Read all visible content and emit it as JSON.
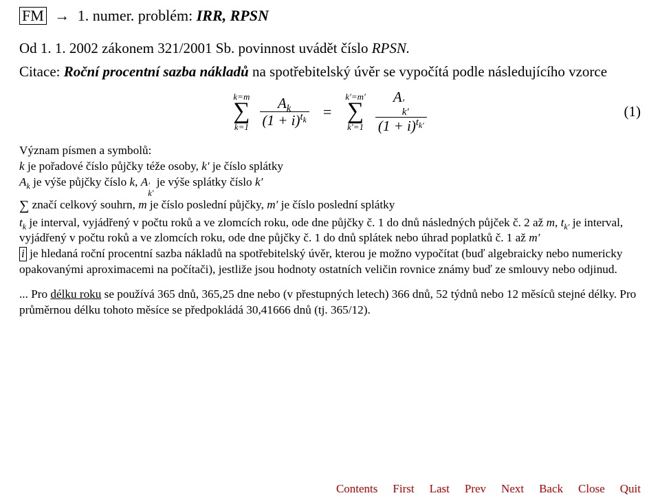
{
  "header": {
    "boxed": "FM",
    "arrow": "→",
    "pre_bold": "1. numer. problém:",
    "bold": "IRR, RPSN"
  },
  "line2": {
    "text_a": "Od 1. 1. 2002 zákonem 321/2001 Sb. povinnost uvádět číslo ",
    "ital": "RPSN."
  },
  "para": {
    "pre": "Citace: ",
    "bold": "Roční procentní sazba nákladů",
    "post": " na spotřebitelský úvěr se vypočítá podle následujícího vzorce"
  },
  "formula": {
    "sum1_top": "k=m",
    "sum1_bot": "k=1",
    "frac1_num": "A",
    "frac1_num_sub": "k",
    "frac1_den_base": "(1 + i)",
    "frac1_den_sup": "t",
    "frac1_den_supsub": "k",
    "eq": "=",
    "sum2_top": "k′=m′",
    "sum2_bot": "k′=1",
    "frac2_num": "A",
    "frac2_num_sup": "′",
    "frac2_num_sub": "k′",
    "frac2_den_base": "(1 + i)",
    "frac2_den_sup": "t",
    "frac2_den_supsub": "k′",
    "eqno": "(1)"
  },
  "defs": {
    "l1": "Význam písmen a symbolů:",
    "l2_a": "k",
    "l2_b": " je pořadové číslo půjčky téže osoby, ",
    "l2_c": "k′",
    "l2_d": " je číslo splátky",
    "l3_a": "A",
    "l3_a_sub": "k",
    "l3_b": " je výše půjčky číslo ",
    "l3_c": "k",
    "l3_d": ",  ",
    "l3_e": "A",
    "l3_e_sup": "′",
    "l3_e_sub": "k′",
    "l3_f": " je výše splátky číslo ",
    "l3_g": "k′",
    "l4_sigma": "∑",
    "l4_a": " značí celkový souhrn, ",
    "l4_b": "m",
    "l4_c": " je číslo poslední půjčky, ",
    "l4_d": "m′",
    "l4_e": " je číslo poslední splátky",
    "l5_a": "t",
    "l5_a_sub": "k",
    "l5_b": " je interval, vyjádřený v počtu roků a ve zlomcích roku, ode dne půjčky č. 1 do dnů následných půjček č. 2 až ",
    "l5_c": "m",
    "l5_d": ", ",
    "l5_e": "t",
    "l5_e_sub": "k′",
    "l5_f": " je interval, vyjádřený v počtu roků a ve zlomcích roku, ode dne půjčky č. 1 do dnů splátek nebo úhrad poplatků č. 1 až ",
    "l5_g": "m′",
    "l6_a": "i",
    "l6_b": " je hledaná roční procentní sazba nákladů na spotřebitelský úvěr, kterou je možno vypočítat (buď algebraicky nebo numericky opakovanými aproximacemi na počítači), jestliže jsou hodnoty ostatních veličin rovnice známy buď ze smlouvy nebo odjinud.",
    "l7_a": "... Pro ",
    "l7_b": "délku roku",
    "l7_c": " se používá 365 dnů, 365,25 dne nebo (v přestupných letech) 366 dnů, 52 týdnů nebo 12 měsíců stejné délky. Pro průměrnou délku tohoto měsíce se předpokládá 30,41666 dnů (tj. 365/12)."
  },
  "footer": {
    "items": [
      "Contents",
      "First",
      "Last",
      "Prev",
      "Next",
      "Back",
      "Close",
      "Quit"
    ],
    "color": "#b30000"
  }
}
